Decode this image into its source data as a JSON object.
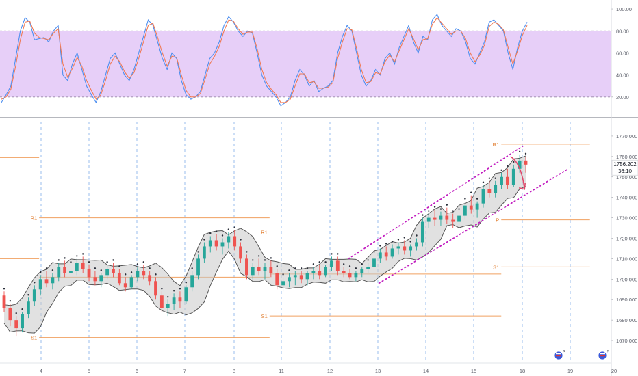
{
  "colors": {
    "up_candle": "#26a69a",
    "down_candle": "#ef5350",
    "k_line": "#4c8ef0",
    "d_line": "#f07a55",
    "stoch_band": "#e3c7f7",
    "pivot": "#f0a060",
    "channel": "#c21ec0",
    "arrow": "#e0476a",
    "session_line": "#6fa0e6",
    "bollinger_fill": "#c8c8c8"
  },
  "chart_data": [
    {
      "type": "line",
      "panel": "stochastic",
      "y_ticks": [
        "100.00",
        "80.00",
        "60.00",
        "40.00",
        "20.00"
      ],
      "ylim": [
        5,
        105
      ],
      "band": [
        20,
        80
      ],
      "series": [
        {
          "key": "k",
          "color_key": "k_line",
          "values": [
            15,
            22,
            30,
            55,
            80,
            92,
            88,
            72,
            73,
            74,
            70,
            80,
            85,
            40,
            35,
            50,
            60,
            45,
            30,
            22,
            15,
            25,
            40,
            55,
            60,
            50,
            40,
            35,
            45,
            60,
            75,
            90,
            85,
            70,
            55,
            45,
            60,
            55,
            35,
            22,
            18,
            20,
            25,
            40,
            55,
            60,
            70,
            85,
            93,
            88,
            80,
            75,
            80,
            78,
            60,
            40,
            30,
            25,
            20,
            12,
            15,
            20,
            35,
            45,
            40,
            30,
            35,
            25,
            28,
            30,
            35,
            60,
            75,
            85,
            80,
            60,
            40,
            30,
            35,
            45,
            40,
            55,
            60,
            50,
            65,
            75,
            85,
            70,
            60,
            75,
            72,
            90,
            95,
            85,
            80,
            75,
            82,
            80,
            70,
            55,
            50,
            60,
            70,
            88,
            90,
            85,
            80,
            60,
            45,
            65,
            80,
            88
          ]
        },
        {
          "key": "d",
          "color_key": "d_line",
          "values": [
            18,
            20,
            27,
            48,
            72,
            88,
            89,
            78,
            74,
            73,
            72,
            78,
            82,
            50,
            38,
            46,
            56,
            48,
            35,
            26,
            18,
            22,
            35,
            50,
            57,
            52,
            43,
            37,
            42,
            55,
            70,
            85,
            87,
            74,
            60,
            48,
            57,
            56,
            40,
            26,
            20,
            20,
            23,
            36,
            50,
            57,
            66,
            80,
            90,
            89,
            82,
            77,
            79,
            79,
            64,
            45,
            33,
            27,
            22,
            15,
            15,
            18,
            30,
            41,
            41,
            33,
            34,
            28,
            28,
            29,
            33,
            55,
            70,
            82,
            81,
            64,
            45,
            33,
            34,
            42,
            41,
            52,
            58,
            52,
            62,
            72,
            82,
            73,
            63,
            72,
            73,
            86,
            92,
            87,
            82,
            77,
            80,
            80,
            73,
            60,
            52,
            58,
            67,
            84,
            88,
            86,
            81,
            65,
            50,
            62,
            76,
            85
          ]
        }
      ]
    },
    {
      "type": "candlestick",
      "panel": "price",
      "x_ticks": [
        "4",
        "5",
        "6",
        "7",
        "8",
        "11",
        "12",
        "13",
        "14",
        "15",
        "18",
        "19",
        "20"
      ],
      "y_ticks": [
        "1770.000",
        "1760.000",
        "1750.000",
        "1740.000",
        "1730.000",
        "1720.000",
        "1710.000",
        "1700.000",
        "1690.000",
        "1680.000",
        "1670.000"
      ],
      "ylim": [
        1664,
        1777
      ],
      "ohlc": [
        [
          1692,
          1694,
          1684,
          1686
        ],
        [
          1686,
          1688,
          1677,
          1680
        ],
        [
          1680,
          1682,
          1672,
          1676
        ],
        [
          1676,
          1684,
          1674,
          1683
        ],
        [
          1683,
          1691,
          1681,
          1689
        ],
        [
          1689,
          1697,
          1687,
          1695
        ],
        [
          1695,
          1702,
          1692,
          1700
        ],
        [
          1700,
          1704,
          1696,
          1698
        ],
        [
          1698,
          1703,
          1695,
          1701
        ],
        [
          1701,
          1708,
          1699,
          1706
        ],
        [
          1706,
          1709,
          1701,
          1703
        ],
        [
          1703,
          1707,
          1698,
          1704
        ],
        [
          1704,
          1710,
          1702,
          1708
        ],
        [
          1708,
          1711,
          1703,
          1705
        ],
        [
          1705,
          1707,
          1699,
          1701
        ],
        [
          1701,
          1704,
          1697,
          1699
        ],
        [
          1699,
          1703,
          1696,
          1702
        ],
        [
          1702,
          1707,
          1700,
          1705
        ],
        [
          1705,
          1708,
          1701,
          1703
        ],
        [
          1703,
          1705,
          1697,
          1698
        ],
        [
          1698,
          1701,
          1694,
          1696
        ],
        [
          1696,
          1702,
          1695,
          1701
        ],
        [
          1701,
          1706,
          1699,
          1704
        ],
        [
          1704,
          1707,
          1700,
          1702
        ],
        [
          1702,
          1704,
          1697,
          1699
        ],
        [
          1699,
          1701,
          1690,
          1692
        ],
        [
          1692,
          1694,
          1684,
          1686
        ],
        [
          1686,
          1690,
          1682,
          1688
        ],
        [
          1688,
          1693,
          1685,
          1691
        ],
        [
          1691,
          1694,
          1686,
          1689
        ],
        [
          1689,
          1697,
          1688,
          1696
        ],
        [
          1696,
          1704,
          1694,
          1702
        ],
        [
          1702,
          1712,
          1700,
          1710
        ],
        [
          1710,
          1718,
          1708,
          1716
        ],
        [
          1716,
          1721,
          1713,
          1719
        ],
        [
          1719,
          1722,
          1714,
          1716
        ],
        [
          1716,
          1720,
          1712,
          1718
        ],
        [
          1718,
          1723,
          1715,
          1721
        ],
        [
          1721,
          1724,
          1714,
          1716
        ],
        [
          1716,
          1718,
          1708,
          1710
        ],
        [
          1710,
          1712,
          1700,
          1702
        ],
        [
          1702,
          1708,
          1700,
          1706
        ],
        [
          1706,
          1710,
          1702,
          1704
        ],
        [
          1704,
          1708,
          1700,
          1706
        ],
        [
          1706,
          1709,
          1701,
          1703
        ],
        [
          1703,
          1705,
          1695,
          1697
        ],
        [
          1697,
          1701,
          1694,
          1699
        ],
        [
          1699,
          1703,
          1696,
          1701
        ],
        [
          1701,
          1704,
          1697,
          1702
        ],
        [
          1702,
          1704,
          1698,
          1700
        ],
        [
          1700,
          1704,
          1697,
          1703
        ],
        [
          1703,
          1706,
          1700,
          1704
        ],
        [
          1704,
          1707,
          1700,
          1702
        ],
        [
          1702,
          1707,
          1701,
          1706
        ],
        [
          1706,
          1711,
          1704,
          1709
        ],
        [
          1709,
          1711,
          1702,
          1704
        ],
        [
          1704,
          1706,
          1701,
          1703
        ],
        [
          1703,
          1705,
          1700,
          1701
        ],
        [
          1701,
          1704,
          1699,
          1703
        ],
        [
          1703,
          1706,
          1701,
          1705
        ],
        [
          1705,
          1708,
          1703,
          1706
        ],
        [
          1706,
          1712,
          1704,
          1710
        ],
        [
          1710,
          1715,
          1708,
          1713
        ],
        [
          1713,
          1716,
          1709,
          1711
        ],
        [
          1711,
          1717,
          1710,
          1715
        ],
        [
          1715,
          1718,
          1712,
          1716
        ],
        [
          1716,
          1719,
          1712,
          1714
        ],
        [
          1714,
          1717,
          1711,
          1716
        ],
        [
          1716,
          1720,
          1714,
          1718
        ],
        [
          1718,
          1730,
          1716,
          1728
        ],
        [
          1728,
          1732,
          1725,
          1730
        ],
        [
          1730,
          1734,
          1726,
          1729
        ],
        [
          1729,
          1733,
          1726,
          1731
        ],
        [
          1731,
          1735,
          1727,
          1729
        ],
        [
          1729,
          1732,
          1725,
          1728
        ],
        [
          1728,
          1733,
          1727,
          1731
        ],
        [
          1731,
          1738,
          1729,
          1736
        ],
        [
          1736,
          1741,
          1732,
          1734
        ],
        [
          1734,
          1738,
          1730,
          1737
        ],
        [
          1737,
          1746,
          1735,
          1744
        ],
        [
          1744,
          1748,
          1740,
          1742
        ],
        [
          1742,
          1748,
          1740,
          1746
        ],
        [
          1746,
          1752,
          1744,
          1750
        ],
        [
          1750,
          1754,
          1744,
          1746
        ],
        [
          1746,
          1756,
          1745,
          1754
        ],
        [
          1754,
          1761,
          1752,
          1758
        ],
        [
          1758,
          1760,
          1752,
          1756
        ]
      ],
      "pivots": [
        {
          "label": "",
          "value": 1759.5,
          "span": [
            0,
            0.064
          ]
        },
        {
          "label": "",
          "value": 1710,
          "span": [
            0,
            0.064
          ]
        },
        {
          "label": "R1",
          "value": 1730,
          "span": [
            0.064,
            0.441
          ]
        },
        {
          "label": "S1",
          "value": 1671.5,
          "span": [
            0.064,
            0.441
          ]
        },
        {
          "label": "R1",
          "value": 1723,
          "span": [
            0.441,
            0.82
          ]
        },
        {
          "label": "",
          "value": 1702.5,
          "span": [
            0.441,
            0.82
          ]
        },
        {
          "label": "S1",
          "value": 1682,
          "span": [
            0.441,
            0.82
          ]
        },
        {
          "label": "R1",
          "value": 1766,
          "span": [
            0.82,
            0.965
          ]
        },
        {
          "label": "P",
          "value": 1729,
          "span": [
            0.82,
            0.965
          ]
        },
        {
          "label": "S1",
          "value": 1706,
          "span": [
            0.82,
            0.965
          ]
        },
        {
          "label": "",
          "value": 1701,
          "span": [
            0.064,
            0.441
          ]
        }
      ],
      "last_price": "1756.202",
      "countdown": "36:10",
      "annotations": [
        {
          "type": "channel",
          "line": "upper",
          "from": [
            0.57,
            1710
          ],
          "to": [
            0.855,
            1765
          ]
        },
        {
          "type": "channel",
          "line": "lower",
          "from": [
            0.62,
            1698
          ],
          "to": [
            0.93,
            1754
          ]
        },
        {
          "type": "arrow",
          "from": [
            0.835,
            1760
          ],
          "to": [
            0.858,
            1744
          ]
        }
      ]
    }
  ],
  "event_markers": [
    {
      "icon": "us-flag-icon",
      "count": "3"
    },
    {
      "icon": "us-flag-icon",
      "count": "6"
    }
  ]
}
